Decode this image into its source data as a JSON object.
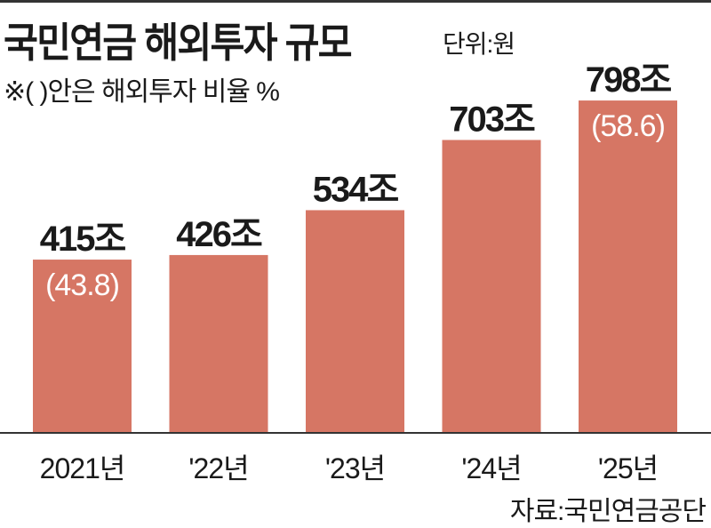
{
  "chart_data": {
    "type": "bar",
    "title": "국민연금 해외투자 규모",
    "unit_label": "단위:원",
    "note": "※( )안은 해외투자 비율 %",
    "source": "자료:국민연금공단",
    "categories": [
      "2021년",
      "'22년",
      "'23년",
      "'24년",
      "'25년"
    ],
    "values": [
      415,
      426,
      534,
      703,
      798
    ],
    "value_labels": [
      "415조",
      "426조",
      "534조",
      "703조",
      "798조"
    ],
    "ratio_labels": [
      "(43.8)",
      "",
      "",
      "",
      "(58.6)"
    ],
    "ylim": [
      0,
      826
    ],
    "grid": false,
    "bar_color": "#d67664"
  }
}
